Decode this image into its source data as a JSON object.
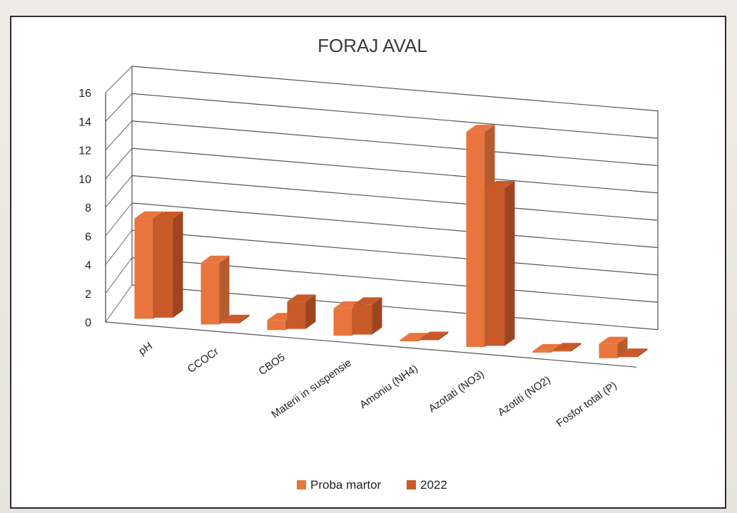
{
  "chart_data": {
    "type": "bar",
    "title": "FORAJ AVAL",
    "xlabel": "",
    "ylabel": "",
    "ylim": [
      0,
      16
    ],
    "y_ticks": [
      0,
      2,
      4,
      6,
      8,
      10,
      12,
      14,
      16
    ],
    "categories": [
      "pH",
      "CCOCr",
      "CBO5",
      "Materii in suspensie",
      "Amoniu (NH4)",
      "Azotati (NO3)",
      "Azotiti (NO2)",
      "Fosfor total (P)"
    ],
    "series": [
      {
        "name": "Proba martor",
        "values": [
          7.0,
          4.3,
          0.7,
          1.9,
          0.05,
          15.0,
          0.1,
          1.0
        ]
      },
      {
        "name": "2022",
        "values": [
          6.9,
          0.1,
          1.9,
          2.1,
          0.05,
          11.0,
          0.1,
          0.1
        ]
      }
    ],
    "grid": true,
    "legend_position": "bottom",
    "colors": {
      "Proba martor": "#e8753d",
      "2022": "#c85a2a"
    }
  }
}
